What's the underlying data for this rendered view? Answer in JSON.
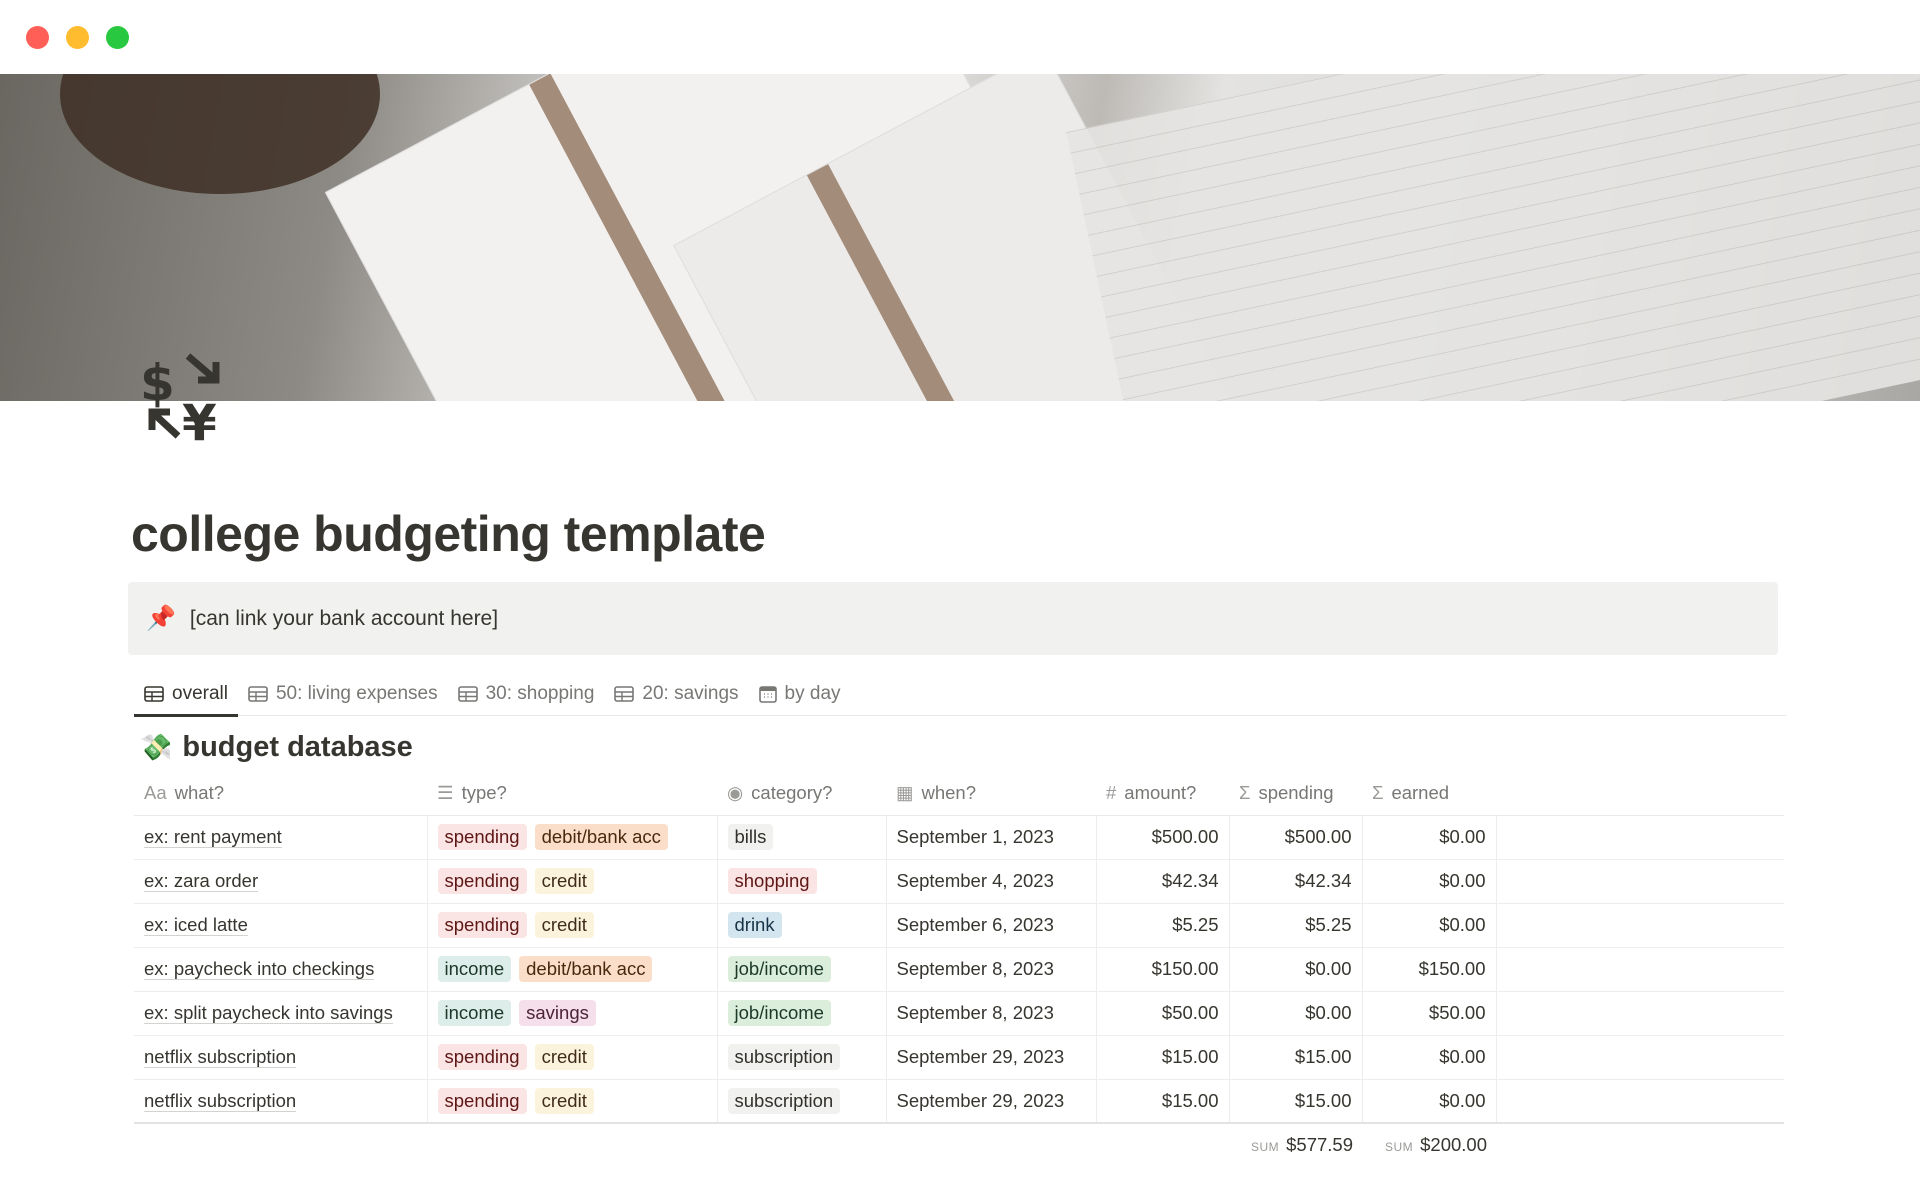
{
  "window": {
    "controls": [
      {
        "name": "close",
        "color": "#ff5f57"
      },
      {
        "name": "minimize",
        "color": "#febc2e"
      },
      {
        "name": "zoom",
        "color": "#28c840"
      }
    ]
  },
  "page": {
    "title": "college budgeting template",
    "icon": "currency-exchange-icon"
  },
  "callout": {
    "icon": "pushpin-icon",
    "text": "[can link your bank account here]"
  },
  "tabs": [
    {
      "label": "overall",
      "icon": "table-icon",
      "active": true
    },
    {
      "label": "50: living expenses",
      "icon": "table-icon"
    },
    {
      "label": "30: shopping",
      "icon": "table-icon"
    },
    {
      "label": "20: savings",
      "icon": "table-icon"
    },
    {
      "label": "by day",
      "icon": "calendar-icon"
    }
  ],
  "database": {
    "title": "budget database",
    "icon": "money-with-wings-icon",
    "columns": [
      {
        "label": "what?",
        "icon": "Aa"
      },
      {
        "label": "type?",
        "icon": "list-icon"
      },
      {
        "label": "category?",
        "icon": "select-icon"
      },
      {
        "label": "when?",
        "icon": "calendar-icon"
      },
      {
        "label": "amount?",
        "icon": "#"
      },
      {
        "label": "spending",
        "icon": "sigma-icon"
      },
      {
        "label": "earned",
        "icon": "sigma-icon"
      }
    ],
    "rows": [
      {
        "what": "ex: rent payment",
        "type": [
          "spending",
          "debit/bank acc"
        ],
        "category": "bills",
        "when": "September 1, 2023",
        "amount": "$500.00",
        "spending": "$500.00",
        "earned": "$0.00"
      },
      {
        "what": "ex: zara order",
        "type": [
          "spending",
          "credit"
        ],
        "category": "shopping",
        "when": "September 4, 2023",
        "amount": "$42.34",
        "spending": "$42.34",
        "earned": "$0.00"
      },
      {
        "what": "ex: iced latte",
        "type": [
          "spending",
          "credit"
        ],
        "category": "drink",
        "when": "September 6, 2023",
        "amount": "$5.25",
        "spending": "$5.25",
        "earned": "$0.00"
      },
      {
        "what": "ex: paycheck into checkings",
        "type": [
          "income",
          "debit/bank acc"
        ],
        "category": "job/income",
        "when": "September 8, 2023",
        "amount": "$150.00",
        "spending": "$0.00",
        "earned": "$150.00"
      },
      {
        "what": "ex: split paycheck into savings",
        "type": [
          "income",
          "savings"
        ],
        "category": "job/income",
        "when": "September 8, 2023",
        "amount": "$50.00",
        "spending": "$0.00",
        "earned": "$50.00"
      },
      {
        "what": "netflix subscription",
        "type": [
          "spending",
          "credit"
        ],
        "category": "subscription",
        "when": "September 29, 2023",
        "amount": "$15.00",
        "spending": "$15.00",
        "earned": "$0.00"
      },
      {
        "what": "netflix subscription",
        "type": [
          "spending",
          "credit"
        ],
        "category": "subscription",
        "when": "September 29, 2023",
        "amount": "$15.00",
        "spending": "$15.00",
        "earned": "$0.00"
      }
    ],
    "sums": {
      "label": "SUM",
      "spending": "$577.59",
      "earned": "$200.00"
    }
  },
  "tag_colors": {
    "spending": [
      "#fbe4e4",
      "#5d1715"
    ],
    "debit/bank acc": [
      "#fadec9",
      "#49290e"
    ],
    "credit": [
      "#fbf3db",
      "#402c1b"
    ],
    "income": [
      "#ddedea",
      "#1c3829"
    ],
    "savings": [
      "#f4dfeb",
      "#4c2337"
    ],
    "bills": [
      "#f1f1ef",
      "#32302c"
    ],
    "shopping": [
      "#fbe4e4",
      "#5d1715"
    ],
    "drink": [
      "#d3e5ef",
      "#183347"
    ],
    "job/income": [
      "#dbeddb",
      "#1c3829"
    ],
    "subscription": [
      "#f1f1ef",
      "#32302c"
    ]
  }
}
